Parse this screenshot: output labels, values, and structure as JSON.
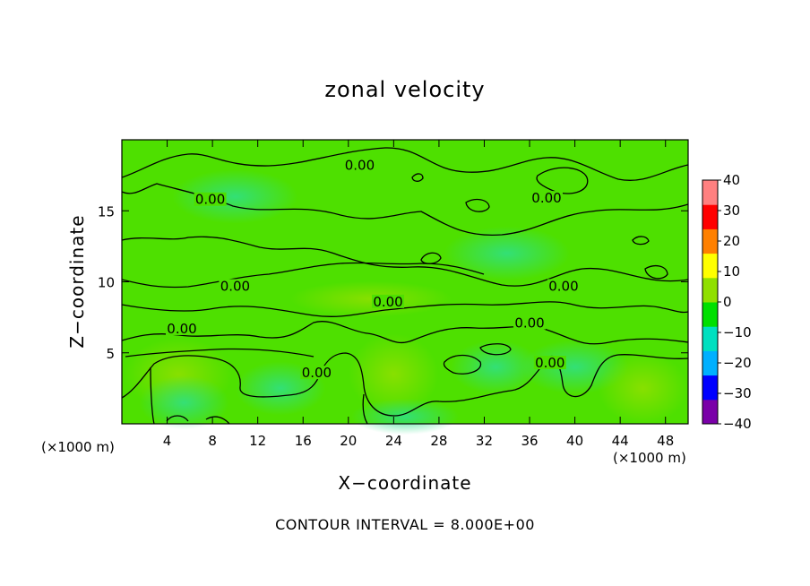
{
  "chart_data": {
    "type": "heatmap",
    "title": "zonal velocity",
    "xlabel": "X−coordinate",
    "ylabel": "Z−coordinate",
    "x_unit_left": "(×1000 m)",
    "x_unit_right": "(×1000 m)",
    "footer": "CONTOUR INTERVAL = 8.000E+00",
    "xlim": [
      0,
      50
    ],
    "ylim": [
      0,
      20
    ],
    "x_ticks": [
      4,
      8,
      12,
      16,
      20,
      24,
      28,
      32,
      36,
      40,
      44,
      48
    ],
    "y_ticks": [
      5,
      10,
      15
    ],
    "colorbar": {
      "min": -40,
      "max": 40,
      "ticks": [
        40,
        30,
        20,
        10,
        0,
        -10,
        -20,
        -30,
        -40
      ],
      "colors": [
        "#7a00a8",
        "#0000ff",
        "#00b0ff",
        "#00e0c0",
        "#00e000",
        "#90e000",
        "#ffff00",
        "#ff8000",
        "#ff0000",
        "#ff8080"
      ]
    },
    "contour_labels": [
      {
        "text": "0.00",
        "x": 21,
        "z": 18
      },
      {
        "text": "0.00",
        "x": 7.8,
        "z": 15.6
      },
      {
        "text": "0.00",
        "x": 37.5,
        "z": 15.7
      },
      {
        "text": "0.00",
        "x": 10,
        "z": 9.5
      },
      {
        "text": "0.00",
        "x": 23.5,
        "z": 8.4
      },
      {
        "text": "0.00",
        "x": 39,
        "z": 9.5
      },
      {
        "text": "0.00",
        "x": 36,
        "z": 6.9
      },
      {
        "text": "0.00",
        "x": 5.3,
        "z": 6.5
      },
      {
        "text": "0.00",
        "x": 37.8,
        "z": 4.1
      },
      {
        "text": "0.00",
        "x": 17.2,
        "z": 3.4
      }
    ],
    "grid": false
  }
}
